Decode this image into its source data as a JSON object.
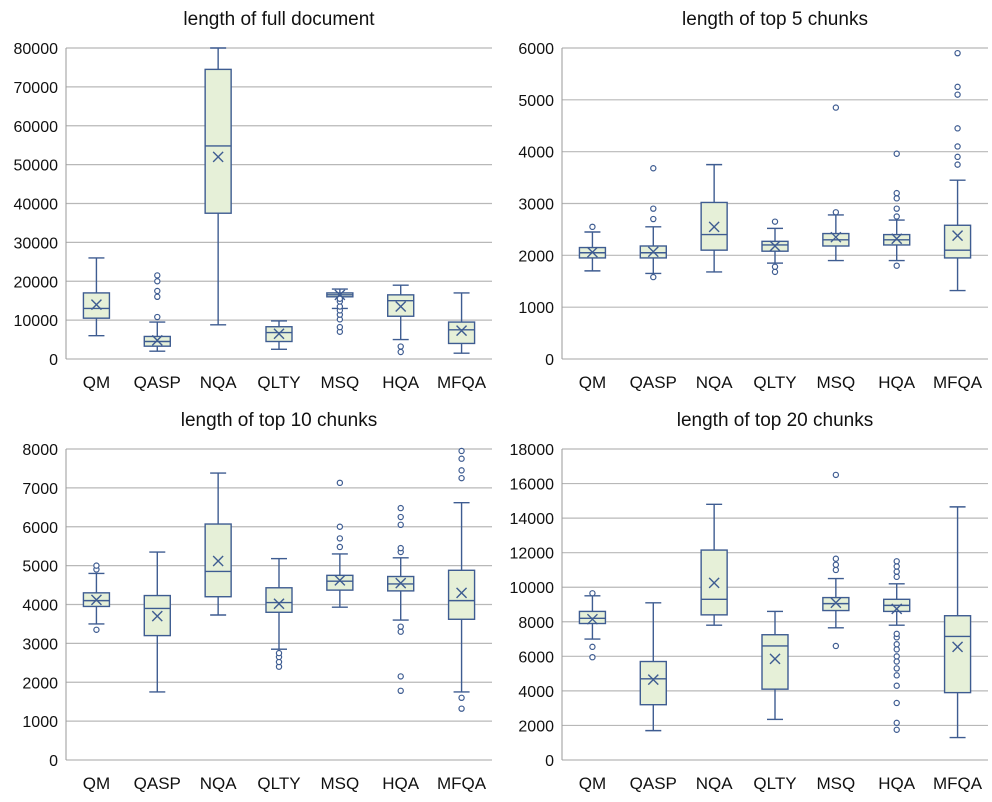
{
  "colors": {
    "box_fill": "#e6f0d8",
    "box_stroke": "#3e5c91",
    "grid": "#b8b8b8",
    "marker": "#3e5c91"
  },
  "chart_data": [
    {
      "type": "box",
      "title": "length of full document",
      "categories": [
        "QM",
        "QASP",
        "NQA",
        "QLTY",
        "MSQ",
        "HQA",
        "MFQA"
      ],
      "ylim": [
        0,
        80000
      ],
      "yticks": [
        0,
        10000,
        20000,
        30000,
        40000,
        50000,
        60000,
        70000,
        80000
      ],
      "grid": true,
      "boxes": [
        {
          "min": 6000,
          "q1": 10500,
          "median": 13000,
          "q3": 17000,
          "max": 26000,
          "mean": 14000,
          "outliers": []
        },
        {
          "min": 2000,
          "q1": 3300,
          "median": 4500,
          "q3": 5800,
          "max": 9500,
          "mean": 4800,
          "outliers": [
            10800,
            16000,
            17500,
            20000,
            21500
          ]
        },
        {
          "min": 8800,
          "q1": 37500,
          "median": 54800,
          "q3": 74500,
          "max": 80000,
          "mean": 52000,
          "outliers": []
        },
        {
          "min": 2500,
          "q1": 4500,
          "median": 6800,
          "q3": 8300,
          "max": 9800,
          "mean": 6500,
          "outliers": []
        },
        {
          "min": 13000,
          "q1": 16000,
          "median": 16500,
          "q3": 17000,
          "max": 18000,
          "mean": 16500,
          "outliers": [
            7000,
            8200,
            10200,
            11400,
            12500,
            13500,
            14800,
            15500
          ]
        },
        {
          "min": 5000,
          "q1": 11000,
          "median": 15000,
          "q3": 16500,
          "max": 19000,
          "mean": 13500,
          "outliers": [
            1800,
            3200
          ]
        },
        {
          "min": 1500,
          "q1": 4000,
          "median": 7500,
          "q3": 9500,
          "max": 17000,
          "mean": 7300,
          "outliers": []
        }
      ]
    },
    {
      "type": "box",
      "title": "length of top 5 chunks",
      "categories": [
        "QM",
        "QASP",
        "NQA",
        "QLTY",
        "MSQ",
        "HQA",
        "MFQA"
      ],
      "ylim": [
        0,
        6000
      ],
      "yticks": [
        0,
        1000,
        2000,
        3000,
        4000,
        5000,
        6000
      ],
      "grid": true,
      "boxes": [
        {
          "min": 1700,
          "q1": 1950,
          "median": 2050,
          "q3": 2150,
          "max": 2450,
          "mean": 2060,
          "outliers": [
            2550
          ]
        },
        {
          "min": 1650,
          "q1": 1950,
          "median": 2050,
          "q3": 2180,
          "max": 2550,
          "mean": 2070,
          "outliers": [
            1580,
            2700,
            2900,
            3680
          ]
        },
        {
          "min": 1680,
          "q1": 2100,
          "median": 2400,
          "q3": 3020,
          "max": 3750,
          "mean": 2550,
          "outliers": []
        },
        {
          "min": 1850,
          "q1": 2080,
          "median": 2200,
          "q3": 2270,
          "max": 2520,
          "mean": 2180,
          "outliers": [
            1680,
            1780,
            2650
          ]
        },
        {
          "min": 1900,
          "q1": 2180,
          "median": 2300,
          "q3": 2420,
          "max": 2780,
          "mean": 2350,
          "outliers": [
            2830,
            4850
          ]
        },
        {
          "min": 1900,
          "q1": 2200,
          "median": 2300,
          "q3": 2400,
          "max": 2680,
          "mean": 2320,
          "outliers": [
            1800,
            2750,
            2900,
            3100,
            3200,
            3960
          ]
        },
        {
          "min": 1320,
          "q1": 1950,
          "median": 2100,
          "q3": 2580,
          "max": 3450,
          "mean": 2380,
          "outliers": [
            3750,
            3900,
            4100,
            4450,
            5100,
            5250,
            5900
          ]
        }
      ]
    },
    {
      "type": "box",
      "title": "length of top 10 chunks",
      "categories": [
        "QM",
        "QASP",
        "NQA",
        "QLTY",
        "MSQ",
        "HQA",
        "MFQA"
      ],
      "ylim": [
        0,
        8000
      ],
      "yticks": [
        0,
        1000,
        2000,
        3000,
        4000,
        5000,
        6000,
        7000,
        8000
      ],
      "grid": true,
      "boxes": [
        {
          "min": 3500,
          "q1": 3950,
          "median": 4100,
          "q3": 4300,
          "max": 4800,
          "mean": 4120,
          "outliers": [
            3350,
            4900,
            5000
          ]
        },
        {
          "min": 1750,
          "q1": 3200,
          "median": 3900,
          "q3": 4230,
          "max": 5350,
          "mean": 3700,
          "outliers": []
        },
        {
          "min": 3730,
          "q1": 4200,
          "median": 4850,
          "q3": 6070,
          "max": 7380,
          "mean": 5120,
          "outliers": []
        },
        {
          "min": 2850,
          "q1": 3800,
          "median": 4050,
          "q3": 4430,
          "max": 5180,
          "mean": 4020,
          "outliers": [
            2400,
            2520,
            2650,
            2750
          ]
        },
        {
          "min": 3930,
          "q1": 4370,
          "median": 4600,
          "q3": 4750,
          "max": 5300,
          "mean": 4620,
          "outliers": [
            5480,
            5700,
            6000,
            7130
          ]
        },
        {
          "min": 3600,
          "q1": 4350,
          "median": 4530,
          "q3": 4720,
          "max": 5200,
          "mean": 4550,
          "outliers": [
            1780,
            2150,
            3300,
            3430,
            5350,
            5450,
            6050,
            6250,
            6480
          ]
        },
        {
          "min": 1750,
          "q1": 3620,
          "median": 4100,
          "q3": 4880,
          "max": 6620,
          "mean": 4300,
          "outliers": [
            1320,
            1600,
            7250,
            7450,
            7750,
            7950
          ]
        }
      ]
    },
    {
      "type": "box",
      "title": "length of top 20 chunks",
      "categories": [
        "QM",
        "QASP",
        "NQA",
        "QLTY",
        "MSQ",
        "HQA",
        "MFQA"
      ],
      "ylim": [
        0,
        18000
      ],
      "yticks": [
        0,
        2000,
        4000,
        6000,
        8000,
        10000,
        12000,
        14000,
        16000,
        18000
      ],
      "grid": true,
      "boxes": [
        {
          "min": 7000,
          "q1": 7900,
          "median": 8200,
          "q3": 8600,
          "max": 9500,
          "mean": 8150,
          "outliers": [
            5950,
            6550,
            9650
          ]
        },
        {
          "min": 1700,
          "q1": 3200,
          "median": 4700,
          "q3": 5700,
          "max": 9100,
          "mean": 4650,
          "outliers": []
        },
        {
          "min": 7800,
          "q1": 8400,
          "median": 9300,
          "q3": 12150,
          "max": 14800,
          "mean": 10250,
          "outliers": []
        },
        {
          "min": 2350,
          "q1": 4100,
          "median": 6600,
          "q3": 7250,
          "max": 8600,
          "mean": 5850,
          "outliers": []
        },
        {
          "min": 7650,
          "q1": 8650,
          "median": 9050,
          "q3": 9400,
          "max": 10500,
          "mean": 9100,
          "outliers": [
            6600,
            11000,
            11300,
            11650,
            16500
          ]
        },
        {
          "min": 7800,
          "q1": 8600,
          "median": 8950,
          "q3": 9300,
          "max": 10200,
          "mean": 8750,
          "outliers": [
            1750,
            2150,
            3300,
            4300,
            4900,
            5300,
            5700,
            6000,
            6400,
            6700,
            7100,
            7300,
            10600,
            10900,
            11200,
            11500
          ]
        },
        {
          "min": 1300,
          "q1": 3900,
          "median": 7150,
          "q3": 8350,
          "max": 14650,
          "mean": 6550,
          "outliers": []
        }
      ]
    }
  ]
}
